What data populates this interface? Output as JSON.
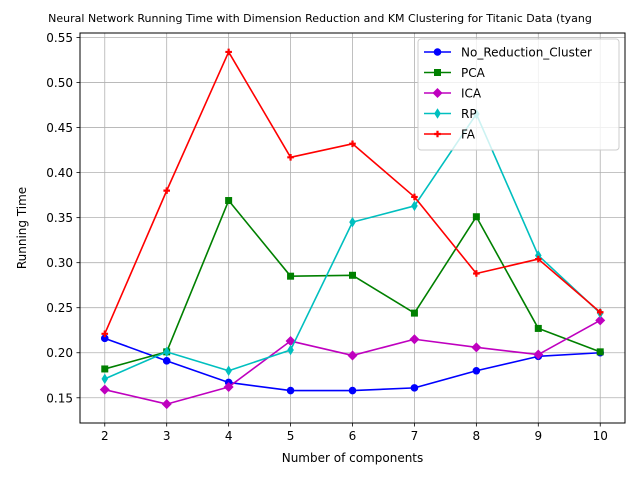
{
  "chart_data": {
    "type": "line",
    "title": "Neural Network Running Time with Dimension Reduction and KM Clustering for Titanic Data (tyang",
    "xlabel": "Number of components",
    "ylabel": "Running Time",
    "xlim": [
      1.6,
      10.4
    ],
    "ylim": [
      0.122,
      0.555
    ],
    "x_ticks": [
      2,
      3,
      4,
      5,
      6,
      7,
      8,
      9,
      10
    ],
    "y_ticks": [
      0.15,
      0.2,
      0.25,
      0.3,
      0.35,
      0.4,
      0.45,
      0.5,
      0.55
    ],
    "grid": true,
    "legend_position": "top-right",
    "x": [
      2,
      3,
      4,
      5,
      6,
      7,
      8,
      9,
      10
    ],
    "series": [
      {
        "name": "No_Reduction_Cluster",
        "color": "#0000ff",
        "marker": "circle",
        "values": [
          0.216,
          0.191,
          0.167,
          0.158,
          0.158,
          0.161,
          0.18,
          0.196,
          0.2
        ]
      },
      {
        "name": "PCA",
        "color": "#008000",
        "marker": "square",
        "values": [
          0.182,
          0.201,
          0.369,
          0.285,
          0.286,
          0.244,
          0.351,
          0.227,
          0.201
        ]
      },
      {
        "name": "ICA",
        "color": "#bf00bf",
        "marker": "diamond",
        "values": [
          0.159,
          0.143,
          0.162,
          0.213,
          0.197,
          0.215,
          0.206,
          0.198,
          0.236
        ]
      },
      {
        "name": "RP",
        "color": "#00bfbf",
        "marker": "thin_diamond",
        "values": [
          0.171,
          0.201,
          0.18,
          0.203,
          0.345,
          0.363,
          0.465,
          0.308,
          0.244
        ]
      },
      {
        "name": "FA",
        "color": "#ff0000",
        "marker": "plus",
        "values": [
          0.221,
          0.38,
          0.534,
          0.417,
          0.432,
          0.373,
          0.288,
          0.304,
          0.245
        ]
      }
    ]
  }
}
